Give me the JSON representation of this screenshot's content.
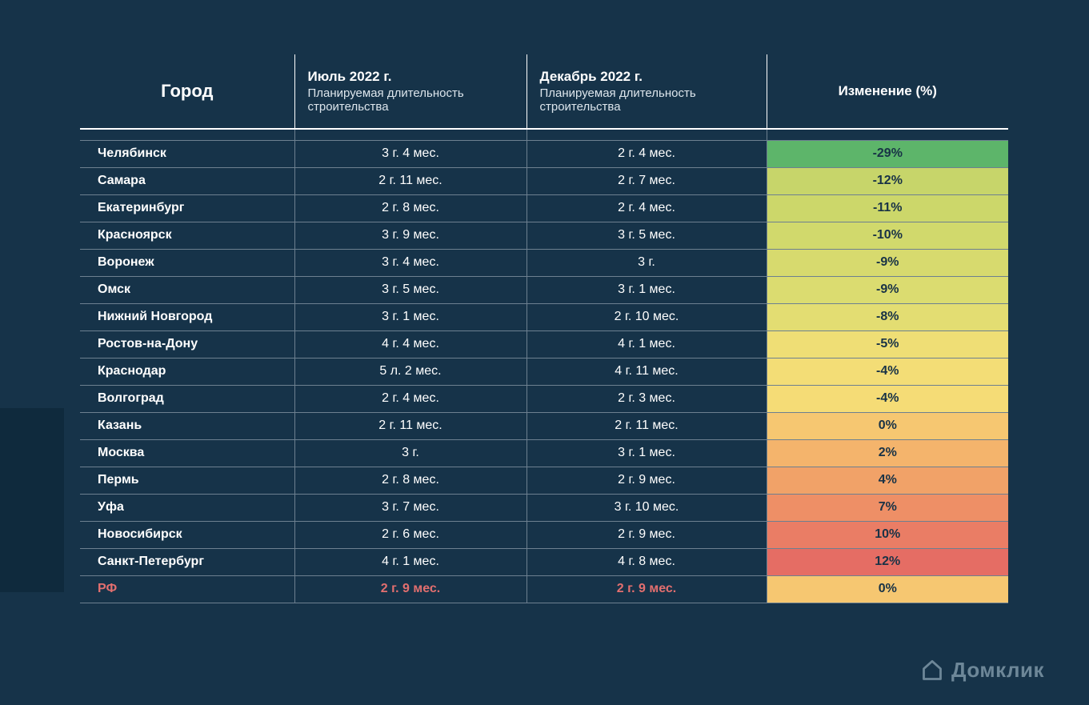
{
  "background_color": "#163349",
  "accent_block_color": "#0f2a3d",
  "text_color": "#ffffff",
  "summary_highlight_color": "#e36f6f",
  "change_text_color": "#183246",
  "headers": {
    "city": "Город",
    "july_title": "Июль 2022 г.",
    "july_sub": "Планируемая длительность строительства",
    "dec_title": "Декабрь 2022 г.",
    "dec_sub": "Планируемая длительность строительства",
    "change": "Изменение (%)"
  },
  "rows": [
    {
      "city": "Челябинск",
      "july": "3 г. 4 мес.",
      "dec": "2 г. 4 мес.",
      "change": "-29%",
      "change_bg": "#5db56a"
    },
    {
      "city": "Самара",
      "july": "2 г. 11 мес.",
      "dec": "2 г. 7 мес.",
      "change": "-12%",
      "change_bg": "#c7d56a"
    },
    {
      "city": "Екатеринбург",
      "july": "2 г. 8 мес.",
      "dec": "2 г. 4 мес.",
      "change": "-11%",
      "change_bg": "#ccd76a"
    },
    {
      "city": "Красноярск",
      "july": "3 г. 9 мес.",
      "dec": "3 г. 5 мес.",
      "change": "-10%",
      "change_bg": "#d1d96c"
    },
    {
      "city": "Воронеж",
      "july": "3 г. 4 мес.",
      "dec": "3 г.",
      "change": "-9%",
      "change_bg": "#d7da6e"
    },
    {
      "city": "Омск",
      "july": "3 г. 5 мес.",
      "dec": "3 г. 1 мес.",
      "change": "-9%",
      "change_bg": "#dbdc70"
    },
    {
      "city": "Нижний Новгород",
      "july": "3 г. 1 мес.",
      "dec": "2 г. 10 мес.",
      "change": "-8%",
      "change_bg": "#e3dd72"
    },
    {
      "city": "Ростов-на-Дону",
      "july": "4 г. 4 мес.",
      "dec": "4 г. 1 мес.",
      "change": "-5%",
      "change_bg": "#efde75"
    },
    {
      "city": "Краснодар",
      "july": "5 л. 2 мес.",
      "dec": "4 г. 11 мес.",
      "change": "-4%",
      "change_bg": "#f3dd76"
    },
    {
      "city": "Волгоград",
      "july": "2 г. 4 мес.",
      "dec": "2 г. 3 мес.",
      "change": "-4%",
      "change_bg": "#f5dc76"
    },
    {
      "city": "Казань",
      "july": "2 г. 11 мес.",
      "dec": "2 г. 11 мес.",
      "change": "0%",
      "change_bg": "#f6c771"
    },
    {
      "city": "Москва",
      "july": "3 г.",
      "dec": "3 г. 1 мес.",
      "change": "2%",
      "change_bg": "#f4b46c"
    },
    {
      "city": "Пермь",
      "july": "2 г. 8 мес.",
      "dec": "2 г. 9 мес.",
      "change": "4%",
      "change_bg": "#f1a268"
    },
    {
      "city": "Уфа",
      "july": "3 г. 7 мес.",
      "dec": "3 г. 10 мес.",
      "change": "7%",
      "change_bg": "#ee8f66"
    },
    {
      "city": "Новосибирск",
      "july": "2 г. 6 мес.",
      "dec": "2 г. 9 мес.",
      "change": "10%",
      "change_bg": "#ea7d65"
    },
    {
      "city": "Санкт-Петербург",
      "july": "4 г. 1 мес.",
      "dec": "4 г. 8 мес.",
      "change": "12%",
      "change_bg": "#e56d64"
    }
  ],
  "summary": {
    "city": "РФ",
    "july": "2 г. 9 мес.",
    "dec": "2 г. 9 мес.",
    "change": "0%",
    "change_bg": "#f6c771"
  },
  "logo": {
    "text": "Домклик",
    "color": "#6d8798"
  }
}
